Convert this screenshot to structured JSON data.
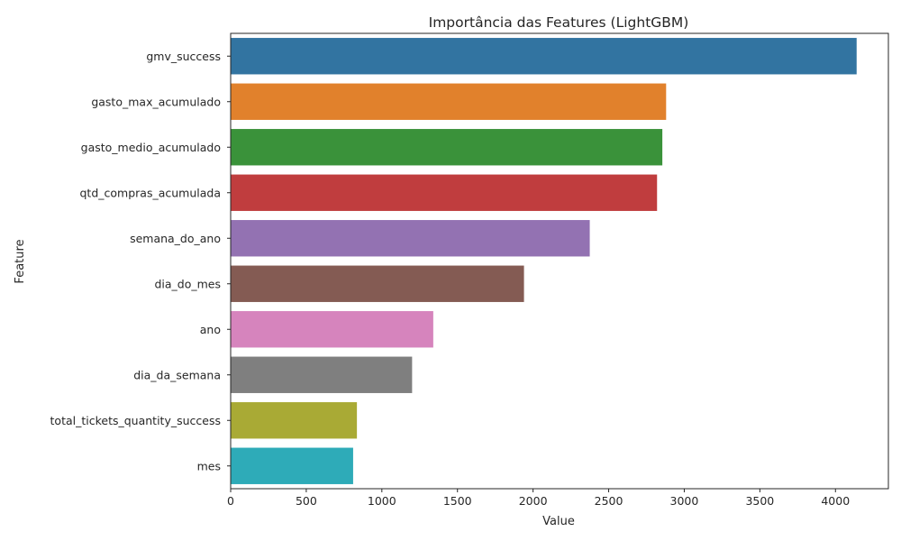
{
  "chart_data": {
    "type": "bar",
    "orientation": "horizontal",
    "title": "Importância das Features (LightGBM)",
    "xlabel": "Value",
    "ylabel": "Feature",
    "categories": [
      "gmv_success",
      "gasto_max_acumulado",
      "gasto_medio_acumulado",
      "qtd_compras_acumulada",
      "semana_do_ano",
      "dia_do_mes",
      "ano",
      "dia_da_semana",
      "total_tickets_quantity_success",
      "mes"
    ],
    "values": [
      4140,
      2880,
      2855,
      2820,
      2375,
      1940,
      1340,
      1200,
      835,
      810
    ],
    "colors": [
      "#3274a1",
      "#e1812c",
      "#3a923a",
      "#c03d3e",
      "#9372b2",
      "#845b53",
      "#d684bd",
      "#7f7f7f",
      "#a9aa35",
      "#2eabb8"
    ],
    "xlim": [
      0,
      4350
    ],
    "xticks": [
      0,
      500,
      1000,
      1500,
      2000,
      2500,
      3000,
      3500,
      4000
    ],
    "xtick_labels": [
      "0",
      "500",
      "1000",
      "1500",
      "2000",
      "2500",
      "3000",
      "3500",
      "4000"
    ],
    "grid": false,
    "legend": "none"
  }
}
